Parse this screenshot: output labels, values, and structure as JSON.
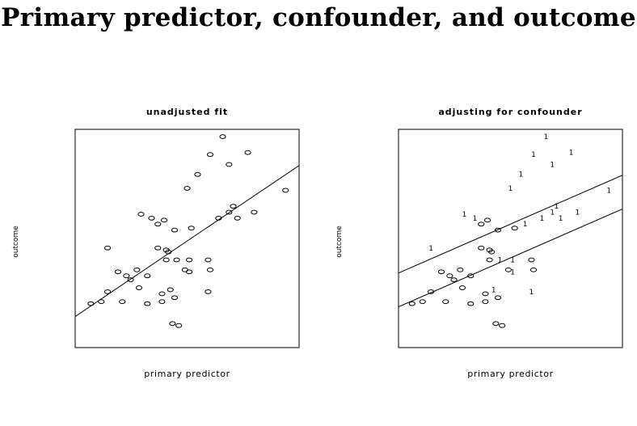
{
  "title": "Primary predictor, confounder, and outcome",
  "chart_data": [
    {
      "type": "scatter",
      "title": "unadjusted fit",
      "xlabel": "primary predictor",
      "ylabel": "outcome",
      "xlim": [
        0,
        100
      ],
      "ylim": [
        0,
        100
      ],
      "grid": false,
      "points": [
        {
          "x": 4,
          "y": 16,
          "label": "0"
        },
        {
          "x": 9,
          "y": 17,
          "label": "0"
        },
        {
          "x": 12,
          "y": 22,
          "label": "0"
        },
        {
          "x": 12,
          "y": 44,
          "label": "0"
        },
        {
          "x": 17,
          "y": 32,
          "label": "0"
        },
        {
          "x": 19,
          "y": 17,
          "label": "0"
        },
        {
          "x": 21,
          "y": 30,
          "label": "0"
        },
        {
          "x": 23,
          "y": 28,
          "label": "0"
        },
        {
          "x": 26,
          "y": 33,
          "label": "0"
        },
        {
          "x": 27,
          "y": 24,
          "label": "0"
        },
        {
          "x": 28,
          "y": 61,
          "label": "0"
        },
        {
          "x": 31,
          "y": 30,
          "label": "0"
        },
        {
          "x": 31,
          "y": 16,
          "label": "0"
        },
        {
          "x": 33,
          "y": 59,
          "label": "0"
        },
        {
          "x": 36,
          "y": 56,
          "label": "0"
        },
        {
          "x": 36,
          "y": 44,
          "label": "0"
        },
        {
          "x": 38,
          "y": 21,
          "label": "0"
        },
        {
          "x": 38,
          "y": 17,
          "label": "0"
        },
        {
          "x": 39,
          "y": 58,
          "label": "0"
        },
        {
          "x": 40,
          "y": 43,
          "label": "0"
        },
        {
          "x": 40,
          "y": 38,
          "label": "0"
        },
        {
          "x": 41,
          "y": 42,
          "label": "0"
        },
        {
          "x": 42,
          "y": 23,
          "label": "0"
        },
        {
          "x": 43,
          "y": 6,
          "label": "0"
        },
        {
          "x": 44,
          "y": 53,
          "label": "0"
        },
        {
          "x": 44,
          "y": 19,
          "label": "0"
        },
        {
          "x": 45,
          "y": 38,
          "label": "0"
        },
        {
          "x": 46,
          "y": 5,
          "label": "0"
        },
        {
          "x": 49,
          "y": 33,
          "label": "0"
        },
        {
          "x": 50,
          "y": 74,
          "label": "0"
        },
        {
          "x": 51,
          "y": 32,
          "label": "0"
        },
        {
          "x": 51,
          "y": 38,
          "label": "0"
        },
        {
          "x": 52,
          "y": 54,
          "label": "0"
        },
        {
          "x": 55,
          "y": 81,
          "label": "0"
        },
        {
          "x": 60,
          "y": 38,
          "label": "0"
        },
        {
          "x": 60,
          "y": 22,
          "label": "0"
        },
        {
          "x": 61,
          "y": 33,
          "label": "0"
        },
        {
          "x": 61,
          "y": 91,
          "label": "0"
        },
        {
          "x": 65,
          "y": 59,
          "label": "0"
        },
        {
          "x": 67,
          "y": 100,
          "label": "0"
        },
        {
          "x": 70,
          "y": 62,
          "label": "0"
        },
        {
          "x": 70,
          "y": 86,
          "label": "0"
        },
        {
          "x": 72,
          "y": 65,
          "label": "0"
        },
        {
          "x": 74,
          "y": 59,
          "label": "0"
        },
        {
          "x": 79,
          "y": 92,
          "label": "0"
        },
        {
          "x": 82,
          "y": 62,
          "label": "0"
        },
        {
          "x": 97,
          "y": 73,
          "label": "0"
        }
      ],
      "fit_lines": [
        {
          "x": [
            0,
            100
          ],
          "y": [
            12,
            83
          ]
        }
      ]
    },
    {
      "type": "scatter",
      "title": "adjusting for confounder",
      "xlabel": "primary predictor",
      "ylabel": "outcome",
      "xlim": [
        0,
        100
      ],
      "ylim": [
        0,
        100
      ],
      "grid": false,
      "points": [
        {
          "x": 3,
          "y": 16,
          "label": "0"
        },
        {
          "x": 8,
          "y": 17,
          "label": "0"
        },
        {
          "x": 12,
          "y": 22,
          "label": "0"
        },
        {
          "x": 12,
          "y": 44,
          "label": "1"
        },
        {
          "x": 17,
          "y": 32,
          "label": "0"
        },
        {
          "x": 19,
          "y": 17,
          "label": "0"
        },
        {
          "x": 21,
          "y": 30,
          "label": "0"
        },
        {
          "x": 23,
          "y": 28,
          "label": "0"
        },
        {
          "x": 26,
          "y": 33,
          "label": "0"
        },
        {
          "x": 27,
          "y": 24,
          "label": "0"
        },
        {
          "x": 28,
          "y": 61,
          "label": "1"
        },
        {
          "x": 31,
          "y": 30,
          "label": "0"
        },
        {
          "x": 31,
          "y": 16,
          "label": "0"
        },
        {
          "x": 33,
          "y": 59,
          "label": "1"
        },
        {
          "x": 36,
          "y": 56,
          "label": "0"
        },
        {
          "x": 36,
          "y": 44,
          "label": "0"
        },
        {
          "x": 38,
          "y": 21,
          "label": "0"
        },
        {
          "x": 38,
          "y": 17,
          "label": "0"
        },
        {
          "x": 39,
          "y": 58,
          "label": "0"
        },
        {
          "x": 40,
          "y": 43,
          "label": "0"
        },
        {
          "x": 40,
          "y": 38,
          "label": "0"
        },
        {
          "x": 41,
          "y": 42,
          "label": "0"
        },
        {
          "x": 42,
          "y": 23,
          "label": "1"
        },
        {
          "x": 43,
          "y": 6,
          "label": "0"
        },
        {
          "x": 44,
          "y": 53,
          "label": "0"
        },
        {
          "x": 44,
          "y": 19,
          "label": "0"
        },
        {
          "x": 45,
          "y": 38,
          "label": "1"
        },
        {
          "x": 46,
          "y": 5,
          "label": "0"
        },
        {
          "x": 49,
          "y": 33,
          "label": "0"
        },
        {
          "x": 50,
          "y": 74,
          "label": "1"
        },
        {
          "x": 51,
          "y": 32,
          "label": "1"
        },
        {
          "x": 51,
          "y": 38,
          "label": "1"
        },
        {
          "x": 52,
          "y": 54,
          "label": "0"
        },
        {
          "x": 55,
          "y": 81,
          "label": "1"
        },
        {
          "x": 57,
          "y": 56,
          "label": "1"
        },
        {
          "x": 60,
          "y": 38,
          "label": "0"
        },
        {
          "x": 60,
          "y": 22,
          "label": "1"
        },
        {
          "x": 61,
          "y": 33,
          "label": "0"
        },
        {
          "x": 61,
          "y": 91,
          "label": "1"
        },
        {
          "x": 65,
          "y": 59,
          "label": "1"
        },
        {
          "x": 67,
          "y": 100,
          "label": "1"
        },
        {
          "x": 70,
          "y": 62,
          "label": "1"
        },
        {
          "x": 70,
          "y": 86,
          "label": "1"
        },
        {
          "x": 72,
          "y": 65,
          "label": "1"
        },
        {
          "x": 74,
          "y": 59,
          "label": "1"
        },
        {
          "x": 79,
          "y": 92,
          "label": "1"
        },
        {
          "x": 82,
          "y": 62,
          "label": "1"
        },
        {
          "x": 97,
          "y": 73,
          "label": "1"
        }
      ],
      "fit_lines": [
        {
          "x": [
            0,
            100
          ],
          "y": [
            33,
            79
          ]
        },
        {
          "x": [
            0,
            100
          ],
          "y": [
            16,
            62
          ]
        }
      ]
    }
  ]
}
